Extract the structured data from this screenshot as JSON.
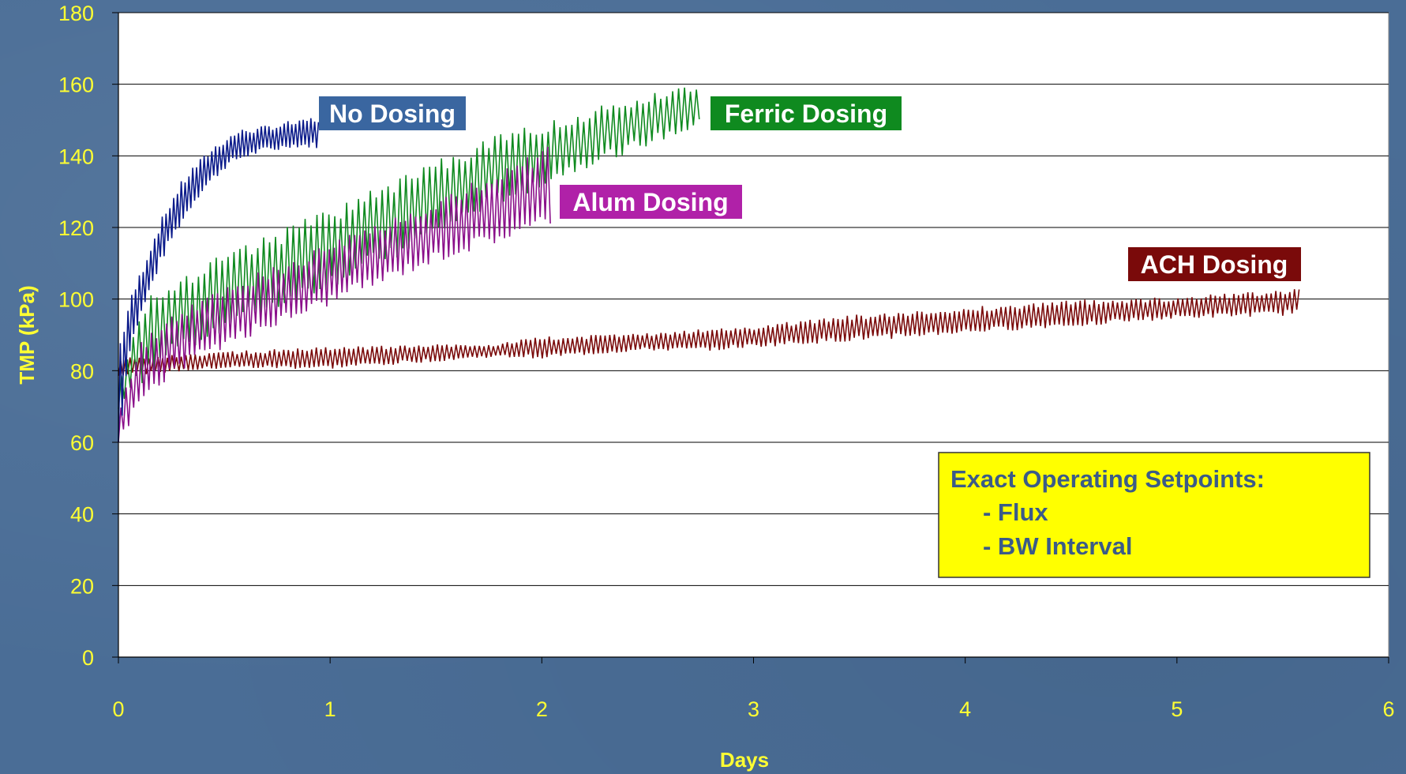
{
  "chart_data": {
    "type": "line",
    "xlabel": "Days",
    "ylabel": "TMP (kPa)",
    "xlim": [
      0,
      6
    ],
    "ylim": [
      0,
      180
    ],
    "xticks": [
      0,
      1,
      2,
      3,
      4,
      5,
      6
    ],
    "yticks": [
      0,
      20,
      40,
      60,
      80,
      100,
      120,
      140,
      160,
      180
    ],
    "grid": "horizontal",
    "colors": {
      "no_dosing": "#0a1a8a",
      "ferric": "#0f8a1f",
      "alum": "#8a0f8a",
      "ach": "#7a0a0a",
      "axis_text": "#ffff33",
      "plot_bg": "#ffffff"
    },
    "series": [
      {
        "name": "No Dosing",
        "color": "#0a1a8a",
        "label_bg": "#3a66a0",
        "x": [
          0,
          0.05,
          0.1,
          0.15,
          0.2,
          0.25,
          0.3,
          0.35,
          0.4,
          0.45,
          0.5,
          0.55,
          0.6,
          0.65,
          0.7,
          0.75,
          0.8,
          0.85,
          0.9,
          0.95
        ],
        "y_low": [
          60,
          86,
          95,
          103,
          111,
          117,
          122,
          127,
          131,
          134,
          137,
          139,
          140,
          141,
          142,
          142,
          143,
          143,
          143,
          143
        ],
        "y_high": [
          85,
          98,
          106,
          114,
          121,
          127,
          132,
          136,
          139,
          142,
          144,
          146,
          147,
          147,
          148,
          148,
          149,
          149,
          150,
          150
        ]
      },
      {
        "name": "Ferric Dosing",
        "color": "#0f8a1f",
        "label_bg": "#0f8a1f",
        "x": [
          0,
          0.1,
          0.25,
          0.5,
          0.75,
          1.0,
          1.25,
          1.5,
          1.75,
          2.0,
          2.25,
          2.5,
          2.75
        ],
        "y_low": [
          70,
          78,
          86,
          93,
          99,
          105,
          112,
          119,
          127,
          133,
          139,
          144,
          149
        ],
        "y_high": [
          76,
          96,
          104,
          111,
          117,
          123,
          130,
          137,
          143,
          148,
          152,
          156,
          160
        ]
      },
      {
        "name": "Alum Dosing",
        "color": "#8a0f8a",
        "label_bg": "#b021a8",
        "x": [
          0,
          0.1,
          0.25,
          0.5,
          0.75,
          1.0,
          1.25,
          1.5,
          1.75,
          2.0,
          2.05
        ],
        "y_low": [
          60,
          72,
          80,
          88,
          94,
          100,
          106,
          112,
          117,
          121,
          123
        ],
        "y_high": [
          68,
          86,
          94,
          102,
          108,
          114,
          120,
          126,
          133,
          140,
          142
        ]
      },
      {
        "name": "ACH Dosing",
        "color": "#7a0a0a",
        "label_bg": "#7a0a0a",
        "x": [
          0,
          0.5,
          1.0,
          1.5,
          1.75,
          2.0,
          2.5,
          2.75,
          3.0,
          3.5,
          4.0,
          4.5,
          5.0,
          5.5,
          5.58
        ],
        "y_low": [
          79,
          81,
          81,
          83,
          84,
          84,
          86,
          86,
          87,
          89,
          91,
          93,
          95,
          96,
          97
        ],
        "y_high": [
          83,
          85,
          86,
          87,
          87,
          89,
          90,
          91,
          92,
          95,
          97,
          99,
          100,
          102,
          103
        ]
      }
    ]
  },
  "annotation_box": {
    "title": "Exact Operating Setpoints:",
    "lines": [
      "- Flux",
      "- BW Interval"
    ],
    "bg": "#ffff00",
    "text_color": "#3b5b88"
  }
}
